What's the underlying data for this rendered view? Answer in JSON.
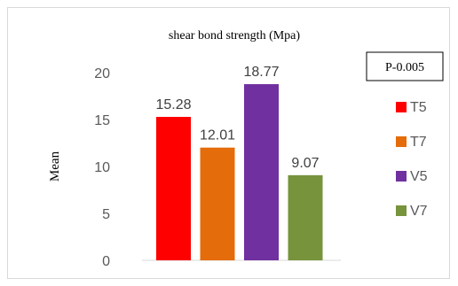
{
  "chart_data": {
    "type": "bar",
    "title": "shear bond strength (Mpa)",
    "ylabel": "Mean",
    "xlabel": "",
    "categories": [
      "T5",
      "T7",
      "V5",
      "V7"
    ],
    "values": [
      15.28,
      12.01,
      18.77,
      9.07
    ],
    "data_labels": [
      "15.28",
      "12.01",
      "18.77",
      "9.07"
    ],
    "colors": [
      "#ff0000",
      "#e46c0a",
      "#7030a0",
      "#77933c"
    ],
    "ylim": [
      0,
      20
    ],
    "yticks": [
      0,
      5,
      10,
      15,
      20
    ],
    "grid": false,
    "legend_position": "right",
    "annotation": "P-0.005"
  }
}
